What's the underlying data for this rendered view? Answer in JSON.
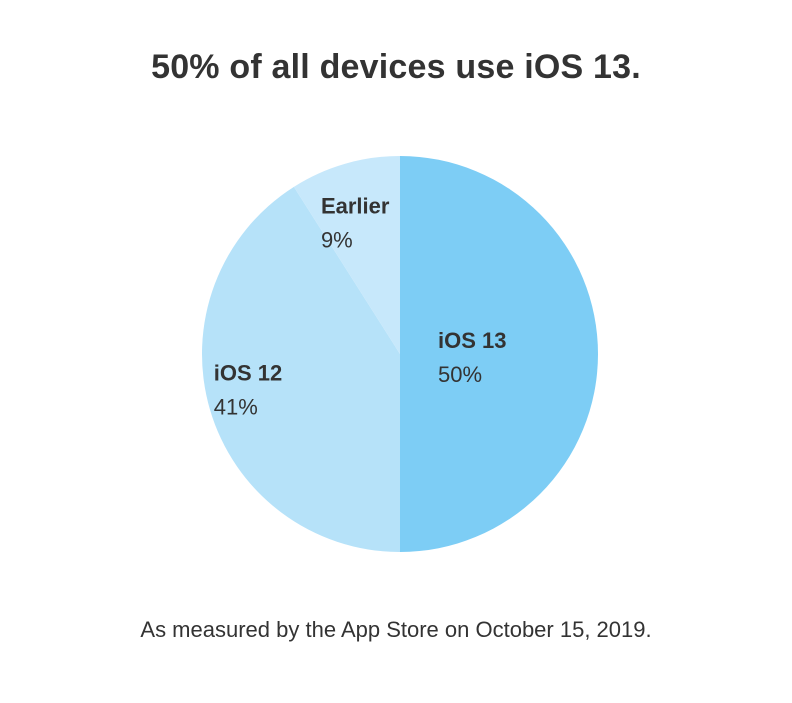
{
  "title": "50% of all devices use iOS 13.",
  "footnote": "As measured by the App Store on October 15, 2019.",
  "chart_data": {
    "type": "pie",
    "title": "50% of all devices use iOS 13.",
    "slices": [
      {
        "label": "iOS 13",
        "value": 50,
        "value_label": "50%",
        "color": "#7dcdf5"
      },
      {
        "label": "iOS 12",
        "value": 41,
        "value_label": "41%",
        "color": "#b6e2f9"
      },
      {
        "label": "Earlier",
        "value": 9,
        "value_label": "9%",
        "color": "#c7e8fb"
      }
    ],
    "start_angle_degrees": 0,
    "direction": "clockwise",
    "legend": "none",
    "labels_inside_slices": true
  }
}
